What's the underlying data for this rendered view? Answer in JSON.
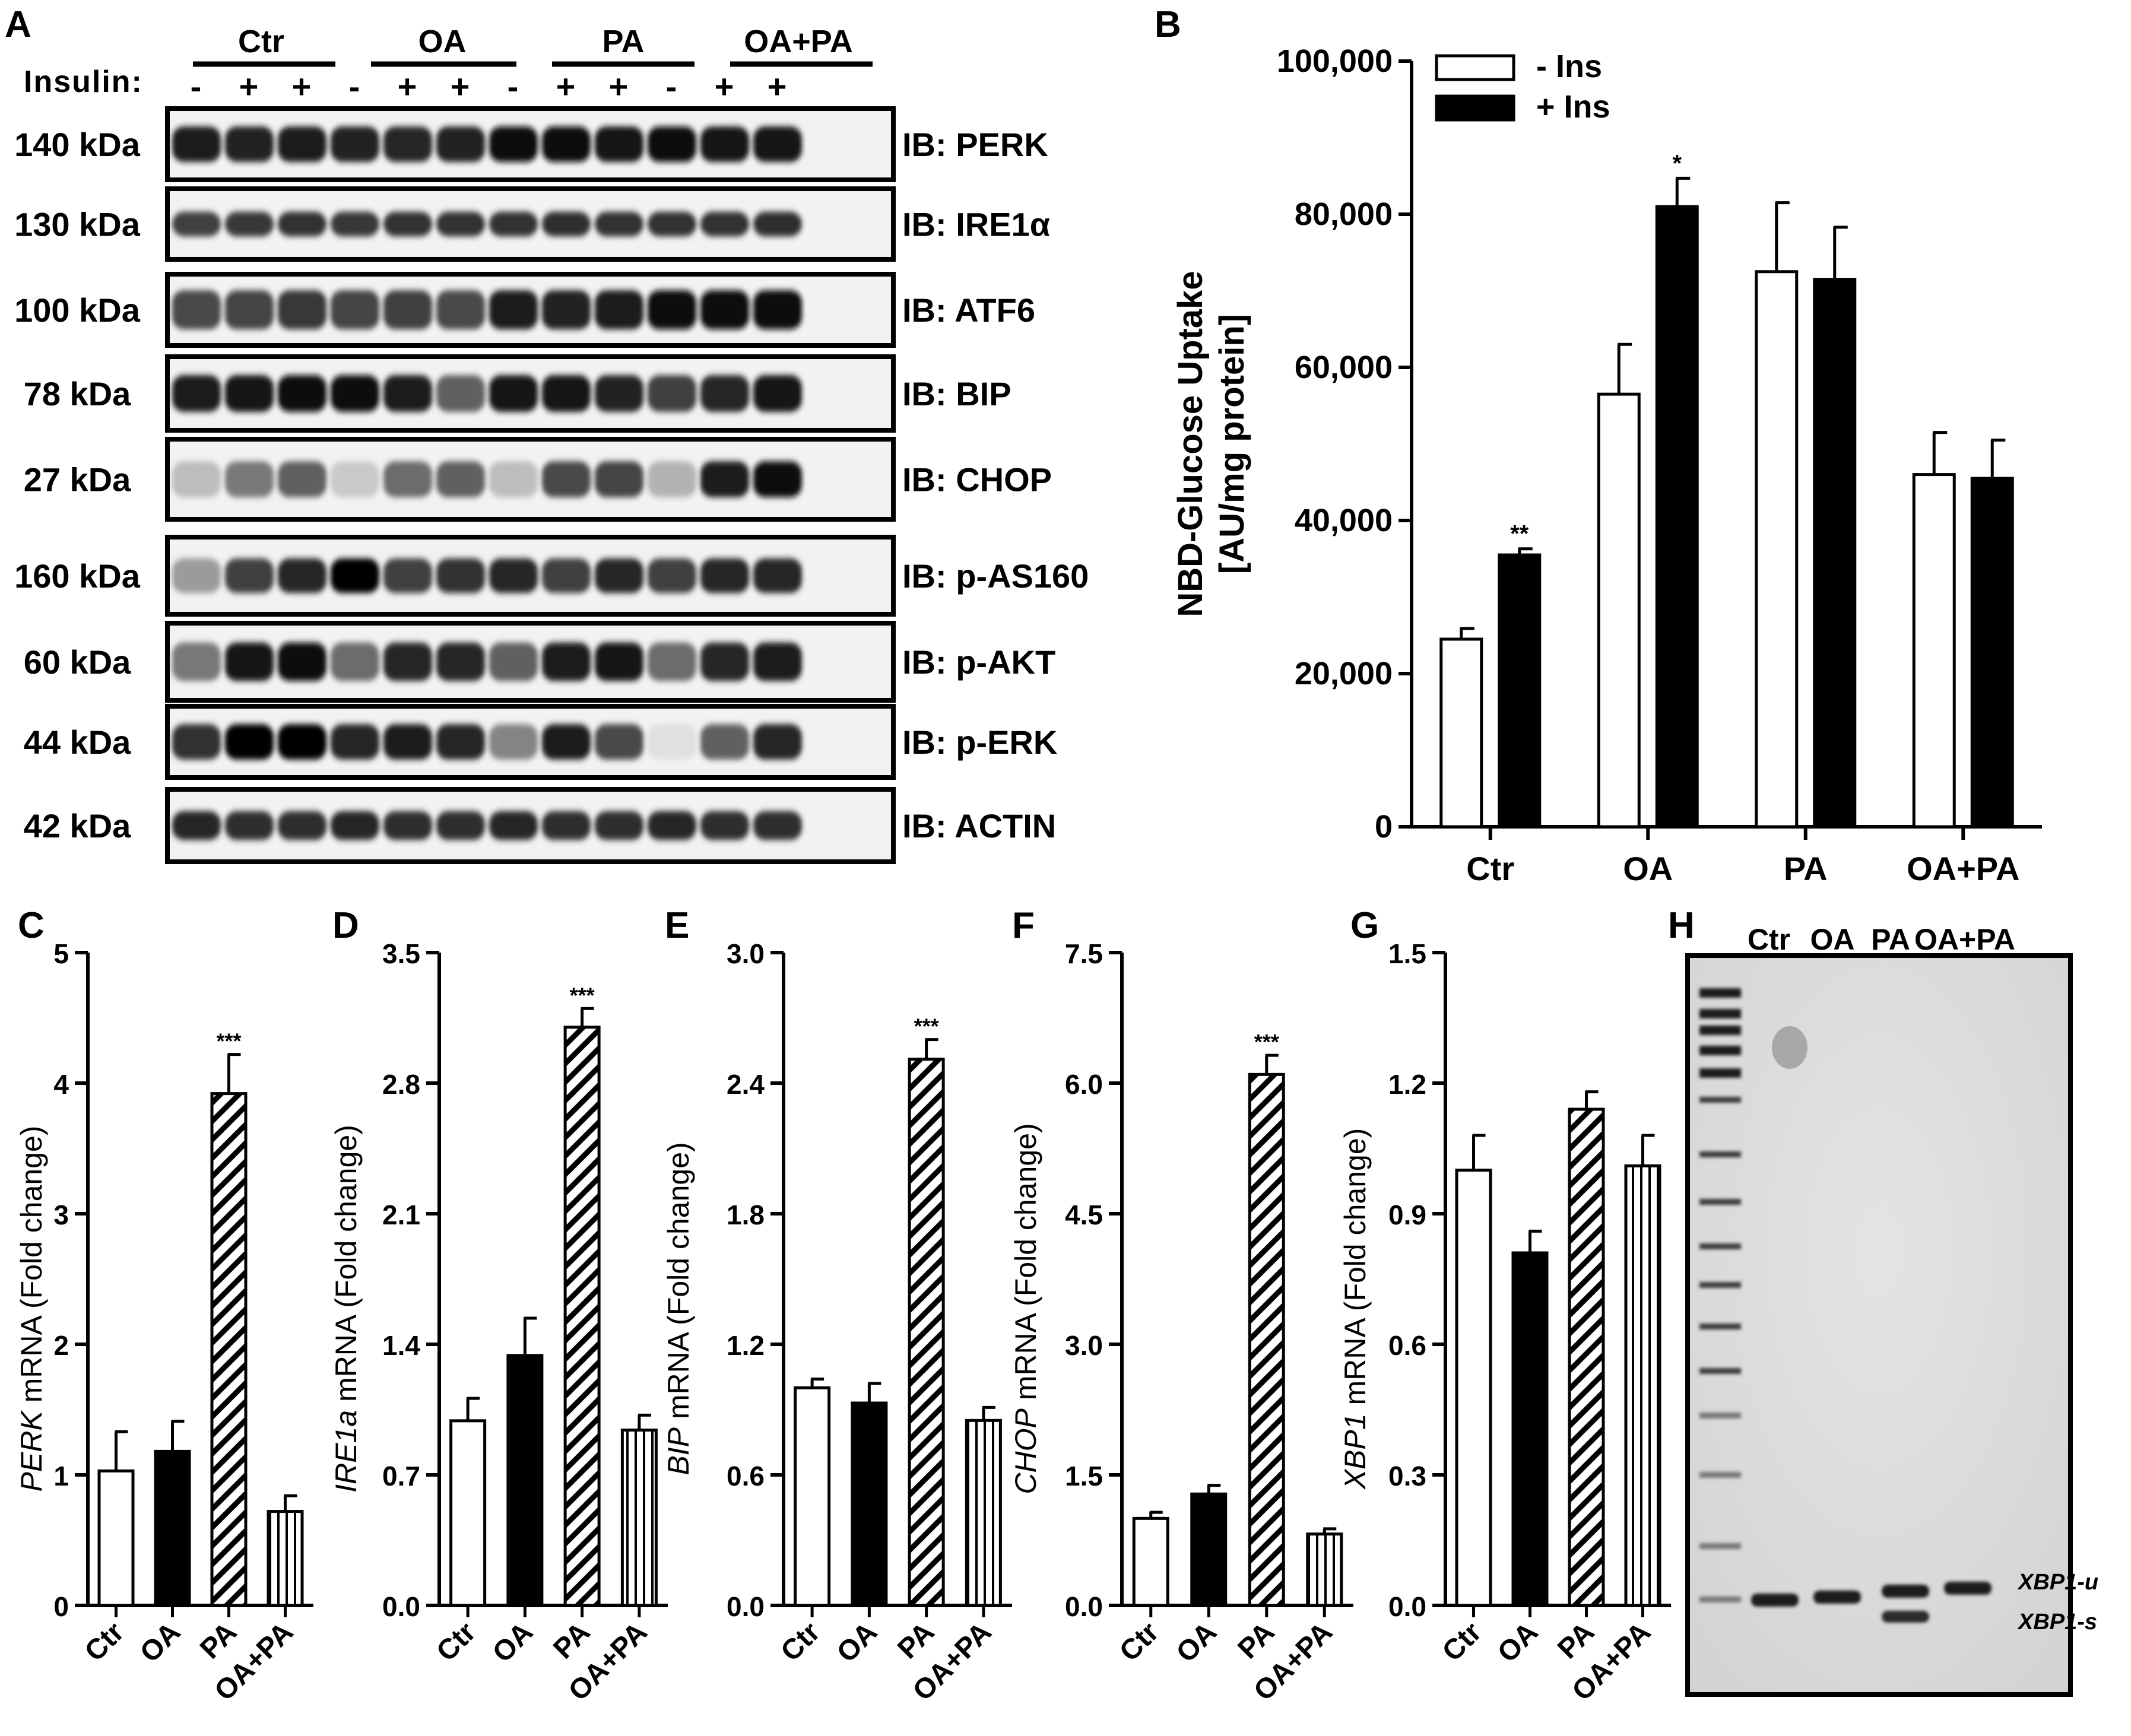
{
  "panel_a": {
    "letter": "A",
    "groups": [
      "Ctr",
      "OA",
      "PA",
      "OA+PA"
    ],
    "insulin_label": "Insulin:",
    "insulin_signs": [
      "-",
      "+",
      "+",
      "-",
      "+",
      "+",
      "-",
      "+",
      "+",
      "-",
      "+",
      "+"
    ],
    "blots": [
      {
        "mw": "140 kDa",
        "label": "IB: PERK",
        "intensity": [
          0.9,
          0.88,
          0.9,
          0.88,
          0.85,
          0.87,
          0.95,
          0.95,
          0.93,
          0.95,
          0.93,
          0.93
        ],
        "thickness": 0.5
      },
      {
        "mw": "130 kDa",
        "label": "IB: IRE1α",
        "intensity": [
          0.75,
          0.78,
          0.8,
          0.78,
          0.8,
          0.8,
          0.8,
          0.82,
          0.8,
          0.8,
          0.8,
          0.82
        ],
        "thickness": 0.35
      },
      {
        "mw": "100 kDa",
        "label": "IB: ATF6",
        "intensity": [
          0.7,
          0.72,
          0.78,
          0.72,
          0.75,
          0.7,
          0.9,
          0.88,
          0.9,
          0.95,
          0.97,
          0.95
        ],
        "thickness": 0.55
      },
      {
        "mw": "78 kDa",
        "label": "IB: BIP",
        "intensity": [
          0.9,
          0.92,
          0.95,
          0.95,
          0.9,
          0.6,
          0.92,
          0.93,
          0.88,
          0.75,
          0.85,
          0.92
        ],
        "thickness": 0.5
      },
      {
        "mw": "27 kDa",
        "label": "IB: CHOP",
        "intensity": [
          0.2,
          0.5,
          0.6,
          0.15,
          0.55,
          0.6,
          0.2,
          0.7,
          0.72,
          0.25,
          0.9,
          0.95
        ],
        "thickness": 0.45
      },
      {
        "mw": "160 kDa",
        "label": "IB: p-AS160",
        "intensity": [
          0.35,
          0.75,
          0.85,
          1.0,
          0.75,
          0.8,
          0.85,
          0.75,
          0.85,
          0.75,
          0.85,
          0.85
        ],
        "thickness": 0.45
      },
      {
        "mw": "60 kDa",
        "label": "IB: p-AKT",
        "intensity": [
          0.5,
          0.92,
          0.95,
          0.55,
          0.85,
          0.85,
          0.6,
          0.9,
          0.92,
          0.55,
          0.85,
          0.9
        ],
        "thickness": 0.5
      },
      {
        "mw": "44 kDa",
        "label": "IB: p-ERK",
        "intensity": [
          0.8,
          1.0,
          1.0,
          0.85,
          0.9,
          0.85,
          0.45,
          0.9,
          0.7,
          0.05,
          0.6,
          0.85
        ],
        "thickness": 0.5
      },
      {
        "mw": "42 kDa",
        "label": "IB: ACTIN",
        "intensity": [
          0.85,
          0.82,
          0.82,
          0.85,
          0.82,
          0.82,
          0.85,
          0.82,
          0.82,
          0.85,
          0.82,
          0.82
        ],
        "thickness": 0.4
      }
    ]
  },
  "panel_h": {
    "letter": "H",
    "lanes": [
      "Ctr",
      "OA",
      "PA",
      "OA+PA"
    ],
    "band_labels": [
      "XBP1-u",
      "XBP1-s"
    ]
  },
  "chart_data": [
    {
      "panel": "B",
      "type": "bar",
      "categories": [
        "Ctr",
        "OA",
        "PA",
        "OA+PA"
      ],
      "series": [
        {
          "name": "- Ins",
          "values": [
            24500,
            56500,
            72500,
            46000
          ],
          "errors": [
            1400,
            6500,
            9000,
            5500
          ],
          "fill": "#ffffff"
        },
        {
          "name": "+ Ins",
          "values": [
            35500,
            81000,
            71500,
            45500
          ],
          "errors": [
            800,
            3700,
            6800,
            5000
          ],
          "fill": "#000000"
        }
      ],
      "significance": [
        {
          "category": 0,
          "series": 1,
          "label": "**"
        },
        {
          "category": 1,
          "series": 1,
          "label": "*"
        }
      ],
      "ylim": [
        0,
        100000
      ],
      "yticks": [
        0,
        20000,
        40000,
        60000,
        80000,
        100000
      ],
      "ytick_labels": [
        "0",
        "20,000",
        "40,000",
        "60,000",
        "80,000",
        "100,000"
      ],
      "ylabel_line1": "NBD-Glucose Uptake",
      "ylabel_line2": "[AU/mg protein]",
      "legend": [
        "- Ins",
        "+ Ins"
      ],
      "legend_position": "top-left"
    },
    {
      "panel": "C",
      "type": "bar",
      "categories": [
        "Ctr",
        "OA",
        "PA",
        "OA+PA"
      ],
      "values": [
        1.03,
        1.18,
        3.92,
        0.72
      ],
      "errors": [
        0.3,
        0.23,
        0.3,
        0.12
      ],
      "fills": [
        "white",
        "black",
        "hatch",
        "vstripe"
      ],
      "significance": [
        {
          "index": 2,
          "label": "***"
        }
      ],
      "ylim": [
        0,
        5
      ],
      "yticks": [
        "0",
        "1",
        "2",
        "3",
        "4",
        "5"
      ],
      "ylabel_gene": "PERK",
      "ylabel_rest": " mRNA (Fold change)"
    },
    {
      "panel": "D",
      "type": "bar",
      "categories": [
        "Ctr",
        "OA",
        "PA",
        "OA+PA"
      ],
      "values": [
        0.99,
        1.34,
        3.1,
        0.94
      ],
      "errors": [
        0.12,
        0.2,
        0.1,
        0.08
      ],
      "fills": [
        "white",
        "black",
        "hatch",
        "vstripe"
      ],
      "significance": [
        {
          "index": 2,
          "label": "***"
        }
      ],
      "ylim": [
        0,
        3.5
      ],
      "yticks": [
        "0.0",
        "0.7",
        "1.4",
        "2.1",
        "2.8",
        "3.5"
      ],
      "ylabel_gene": "IRE1a",
      "ylabel_rest": " mRNA (Fold change)"
    },
    {
      "panel": "E",
      "type": "bar",
      "categories": [
        "Ctr",
        "OA",
        "PA",
        "OA+PA"
      ],
      "values": [
        1.0,
        0.93,
        2.51,
        0.85
      ],
      "errors": [
        0.04,
        0.09,
        0.09,
        0.06
      ],
      "fills": [
        "white",
        "black",
        "hatch",
        "vstripe"
      ],
      "significance": [
        {
          "index": 2,
          "label": "***"
        }
      ],
      "ylim": [
        0,
        3.0
      ],
      "yticks": [
        "0.0",
        "0.6",
        "1.2",
        "1.8",
        "2.4",
        "3.0"
      ],
      "ylabel_gene": "BIP",
      "ylabel_rest": " mRNA (Fold change)"
    },
    {
      "panel": "F",
      "type": "bar",
      "categories": [
        "Ctr",
        "OA",
        "PA",
        "OA+PA"
      ],
      "values": [
        1.0,
        1.28,
        6.1,
        0.82
      ],
      "errors": [
        0.07,
        0.1,
        0.22,
        0.06
      ],
      "fills": [
        "white",
        "black",
        "hatch",
        "vstripe"
      ],
      "significance": [
        {
          "index": 2,
          "label": "***"
        }
      ],
      "ylim": [
        0,
        7.5
      ],
      "yticks": [
        "0.0",
        "1.5",
        "3.0",
        "4.5",
        "6.0",
        "7.5"
      ],
      "ylabel_gene": "CHOP",
      "ylabel_rest": " mRNA (Fold change)"
    },
    {
      "panel": "G",
      "type": "bar",
      "categories": [
        "Ctr",
        "OA",
        "PA",
        "OA+PA"
      ],
      "values": [
        1.0,
        0.81,
        1.14,
        1.01
      ],
      "errors": [
        0.08,
        0.05,
        0.04,
        0.07
      ],
      "fills": [
        "white",
        "black",
        "hatch",
        "vstripe"
      ],
      "significance": [],
      "ylim": [
        0,
        1.5
      ],
      "yticks": [
        "0.0",
        "0.3",
        "0.6",
        "0.9",
        "1.2",
        "1.5"
      ],
      "ylabel_gene": "XBP1",
      "ylabel_rest": " mRNA (Fold change)"
    }
  ]
}
